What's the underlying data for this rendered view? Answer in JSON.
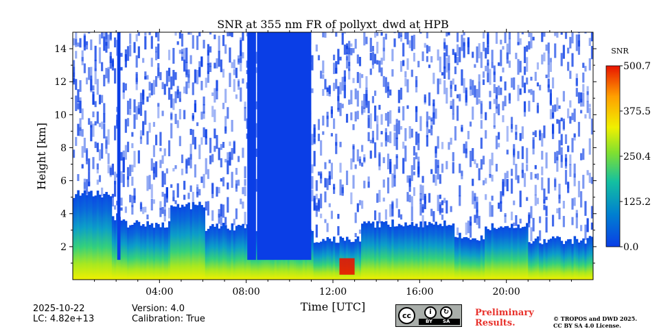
{
  "chart_data": {
    "type": "heatmap",
    "title": "SNR at 355 nm FR of pollyxt_dwd at HPB",
    "xlabel": "Time [UTC]",
    "ylabel": "Height [km]",
    "xlim": [
      0,
      24
    ],
    "ylim": [
      0,
      15
    ],
    "x_ticks": [
      {
        "value": 4,
        "label": "04:00"
      },
      {
        "value": 8,
        "label": "08:00"
      },
      {
        "value": 12,
        "label": "12:00"
      },
      {
        "value": 16,
        "label": "16:00"
      },
      {
        "value": 20,
        "label": "20:00"
      }
    ],
    "y_ticks": [
      {
        "value": 2,
        "label": "2"
      },
      {
        "value": 4,
        "label": "4"
      },
      {
        "value": 6,
        "label": "6"
      },
      {
        "value": 8,
        "label": "8"
      },
      {
        "value": 10,
        "label": "10"
      },
      {
        "value": 12,
        "label": "12"
      },
      {
        "value": 14,
        "label": "14"
      }
    ],
    "colorbar": {
      "label": "SNR",
      "min": 0.0,
      "max": 500.7,
      "ticks": [
        "0.0",
        "125.2",
        "250.4",
        "375.5",
        "500.7"
      ],
      "colormap": [
        "#0a3ee6",
        "#0080d0",
        "#14c0a0",
        "#80e030",
        "#f0f000",
        "#ffa000",
        "#e81400"
      ]
    },
    "features": [
      {
        "type": "profile_columns",
        "from": 0,
        "to": 24,
        "pbl_top_km": 0.8
      },
      {
        "type": "low_signal_block",
        "from": 8.5,
        "to": 11.0,
        "top_km": 15
      },
      {
        "type": "low_signal_block",
        "from": 8.05,
        "to": 8.45,
        "top_km": 15
      },
      {
        "type": "low_signal_column",
        "from": 2.05,
        "to": 2.2,
        "top_km": 15
      },
      {
        "type": "high_snr_patch",
        "from": 12.3,
        "to": 13.0,
        "height_km": [
          0.3,
          1.3
        ]
      }
    ]
  },
  "footer": {
    "date": "2025-10-22",
    "lc": "LC: 4.82e+13",
    "version": "Version: 4.0",
    "calibration": "Calibration: True",
    "preliminary_line1": "Preliminary",
    "preliminary_line2": "Results.",
    "copyright_line1": "© TROPOS and DWD 2025.",
    "copyright_line2": "CC BY SA 4.0 License.",
    "license_badge": {
      "cc": "cc",
      "by": "BY",
      "sa": "SA"
    }
  }
}
